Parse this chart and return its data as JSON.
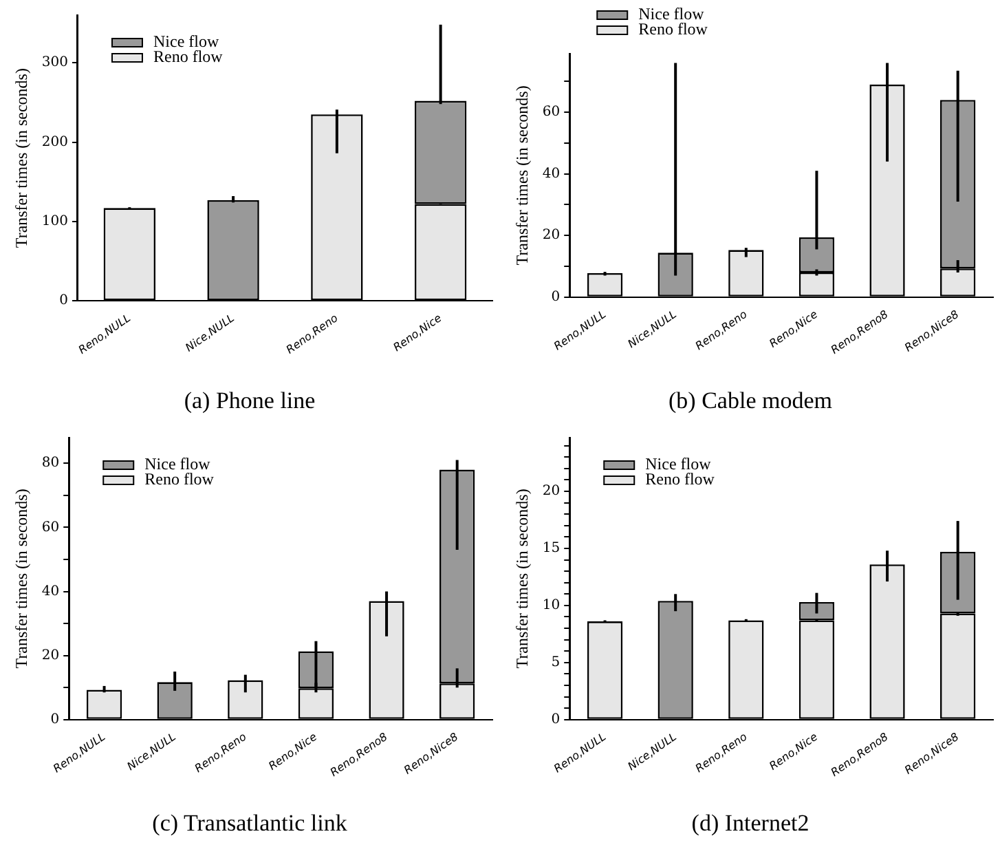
{
  "chart_data": [
    {
      "type": "bar",
      "stacked": true,
      "title": "(a) Phone line",
      "ylabel": "Transfer times (in seconds)",
      "legend": "top left",
      "grid": false,
      "categories": [
        "Reno,NULL",
        "Nice,NULL",
        "Reno,Reno",
        "Reno,Nice"
      ],
      "series": [
        {
          "name": "Reno flow",
          "color": "#e6e6e6",
          "values": [
            117,
            null,
            235,
            122
          ],
          "errors": [
            [
              116,
              118
            ],
            null,
            [
              186,
              241
            ],
            [
              120,
              122
            ]
          ]
        },
        {
          "name": "Nice flow",
          "color": "#999999",
          "values": [
            null,
            127,
            null,
            130
          ],
          "errors": [
            null,
            [
              124,
              132
            ],
            null,
            [
              248,
              348
            ]
          ]
        }
      ],
      "ylim": [
        0,
        360
      ],
      "yticks": [
        0,
        100,
        200,
        300
      ]
    },
    {
      "type": "bar",
      "stacked": true,
      "title": "(b) Cable modem",
      "ylabel": "Transfer times (in seconds)",
      "legend": "top",
      "grid": false,
      "categories": [
        "Reno,NULL",
        "Nice,NULL",
        "Reno,Reno",
        "Reno,Nice",
        "Reno,Reno8",
        "Reno,Nice8"
      ],
      "series": [
        {
          "name": "Reno flow",
          "color": "#e6e6e6",
          "values": [
            7.8,
            null,
            15.3,
            8,
            69,
            9.3
          ],
          "errors": [
            [
              7,
              8.2
            ],
            null,
            [
              13,
              16
            ],
            [
              7,
              9
            ],
            [
              44,
              76
            ],
            [
              8,
              12
            ]
          ]
        },
        {
          "name": "Nice flow",
          "color": "#999999",
          "values": [
            null,
            14.4,
            null,
            11.4,
            null,
            54.7
          ],
          "errors": [
            null,
            [
              7,
              76
            ],
            null,
            [
              15.5,
              41
            ],
            null,
            [
              31,
              73.5
            ]
          ]
        }
      ],
      "ylim": [
        0,
        79
      ],
      "yticks": [
        0,
        {
          "value": 10,
          "label": null
        },
        20,
        {
          "value": 30,
          "label": null
        },
        40,
        {
          "value": 50,
          "label": null
        },
        60,
        {
          "value": 70,
          "label": null
        }
      ]
    },
    {
      "type": "bar",
      "stacked": true,
      "title": "(c) Transatlantic link",
      "ylabel": "Transfer times (in seconds)",
      "legend": "top left",
      "grid": false,
      "categories": [
        "Reno,NULL",
        "Nice,NULL",
        "Reno,Reno",
        "Reno,Nice",
        "Reno,Reno8",
        "Reno,Nice8"
      ],
      "series": [
        {
          "name": "Reno flow",
          "color": "#e6e6e6",
          "values": [
            9.3,
            null,
            12.3,
            9.8,
            37,
            11.3
          ],
          "errors": [
            [
              8.5,
              10.5
            ],
            null,
            [
              8.5,
              14
            ],
            [
              8.5,
              11.5
            ],
            [
              26,
              40
            ],
            [
              10,
              16
            ]
          ]
        },
        {
          "name": "Nice flow",
          "color": "#999999",
          "values": [
            null,
            11.7,
            null,
            11.5,
            null,
            66.7
          ],
          "errors": [
            null,
            [
              9,
              15
            ],
            null,
            [
              10,
              24.5
            ],
            null,
            [
              53,
              81
            ]
          ]
        }
      ],
      "ylim": [
        0,
        88
      ],
      "yticks": [
        0,
        {
          "value": 10,
          "label": null
        },
        20,
        {
          "value": 30,
          "label": null
        },
        40,
        {
          "value": 50,
          "label": null
        },
        60,
        {
          "value": 70,
          "label": null
        },
        80
      ]
    },
    {
      "type": "bar",
      "stacked": true,
      "title": "(d) Internet2",
      "ylabel": "Transfer times (in seconds)",
      "legend": "top left",
      "grid": false,
      "categories": [
        "Reno,NULL",
        "Nice,NULL",
        "Reno,Reno",
        "Reno,Nice",
        "Reno,Reno8",
        "Reno,Nice8"
      ],
      "series": [
        {
          "name": "Reno flow",
          "color": "#e6e6e6",
          "values": [
            8.6,
            null,
            8.7,
            8.7,
            13.6,
            9.3
          ],
          "errors": [
            [
              8.5,
              8.7
            ],
            null,
            [
              8.6,
              8.8
            ],
            [
              8.6,
              8.8
            ],
            [
              12.1,
              14.8
            ],
            [
              9.1,
              9.4
            ]
          ]
        },
        {
          "name": "Nice flow",
          "color": "#999999",
          "values": [
            null,
            10.4,
            null,
            1.6,
            null,
            5.4
          ],
          "errors": [
            null,
            [
              9.5,
              11
            ],
            null,
            [
              9.3,
              11.1
            ],
            null,
            [
              10.5,
              17.4
            ]
          ]
        }
      ],
      "ylim": [
        0,
        24.7
      ],
      "yticks": [
        0,
        {
          "value": 1,
          "label": null
        },
        {
          "value": 2,
          "label": null
        },
        {
          "value": 3,
          "label": null
        },
        {
          "value": 4,
          "label": null
        },
        5,
        {
          "value": 6,
          "label": null
        },
        {
          "value": 7,
          "label": null
        },
        {
          "value": 8,
          "label": null
        },
        {
          "value": 9,
          "label": null
        },
        10,
        {
          "value": 11,
          "label": null
        },
        {
          "value": 12,
          "label": null
        },
        {
          "value": 13,
          "label": null
        },
        {
          "value": 14,
          "label": null
        },
        15,
        {
          "value": 16,
          "label": null
        },
        {
          "value": 17,
          "label": null
        },
        {
          "value": 18,
          "label": null
        },
        {
          "value": 19,
          "label": null
        },
        20,
        {
          "value": 21,
          "label": null
        },
        {
          "value": 22,
          "label": null
        },
        {
          "value": 23,
          "label": null
        },
        {
          "value": 24,
          "label": null
        }
      ]
    }
  ]
}
